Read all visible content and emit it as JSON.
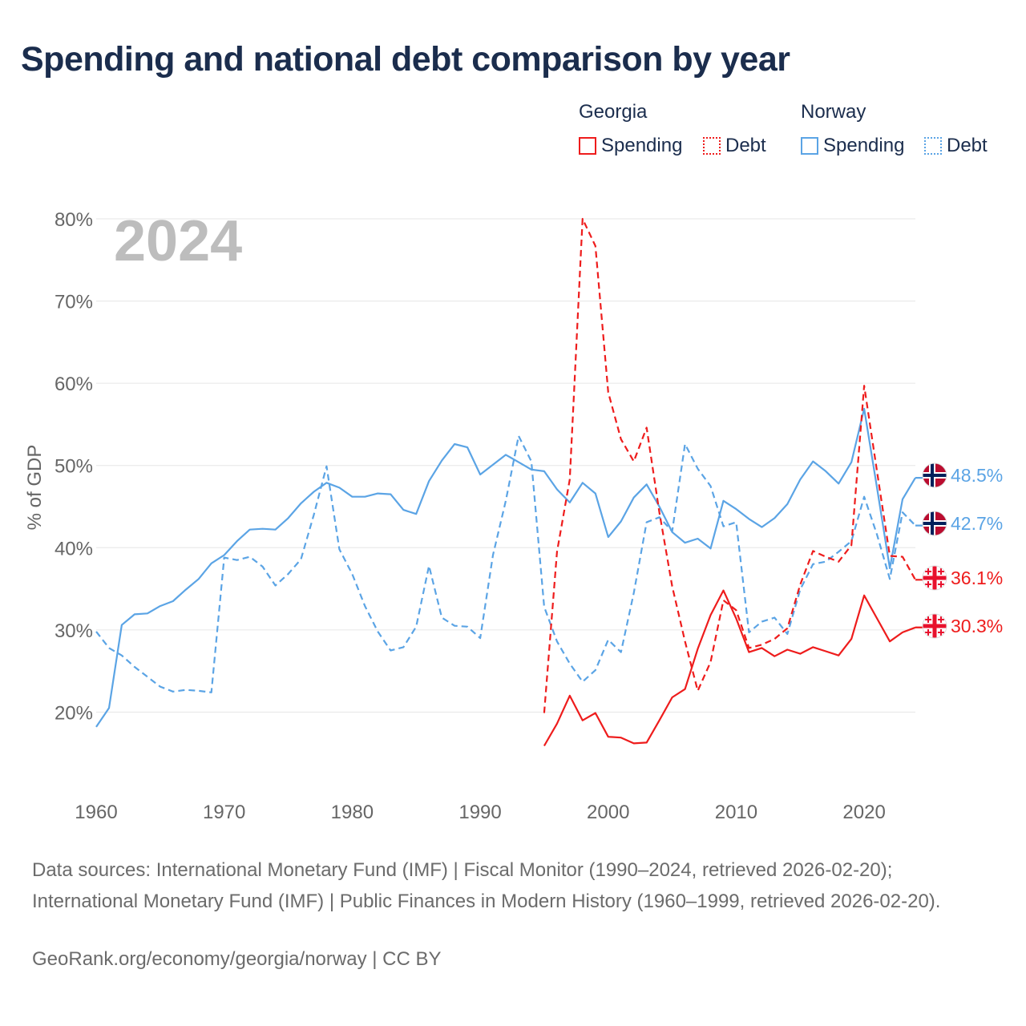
{
  "title": "Spending and national debt comparison by year",
  "legend": {
    "georgia": {
      "name": "Georgia",
      "spending": "Spending",
      "debt": "Debt"
    },
    "norway": {
      "name": "Norway",
      "spending": "Spending",
      "debt": "Debt"
    }
  },
  "colors": {
    "georgia": "#ee1c1c",
    "norway": "#5ba4e5",
    "grid": "#e6e6e6",
    "axis_text": "#666666",
    "year_text": "#bdbdbd"
  },
  "chart_data": {
    "type": "line",
    "title": "Spending and national debt comparison by year",
    "year_label": "2024",
    "ylabel": "% of GDP",
    "xlim": [
      1960,
      2024
    ],
    "ylim": [
      10,
      80
    ],
    "x_ticks": [
      1960,
      1970,
      1980,
      1990,
      2000,
      2010,
      2020
    ],
    "y_ticks": [
      20,
      30,
      40,
      50,
      60,
      70,
      80
    ],
    "y_tick_labels": [
      "20%",
      "30%",
      "40%",
      "50%",
      "60%",
      "70%",
      "80%"
    ],
    "series": [
      {
        "name": "Norway Spending",
        "country": "norway",
        "style": "solid",
        "start_year": 1960,
        "values": [
          18.2,
          20.5,
          30.6,
          31.9,
          32.0,
          32.9,
          33.5,
          34.9,
          36.2,
          38.1,
          39.1,
          40.8,
          42.2,
          42.3,
          42.2,
          43.6,
          45.4,
          46.8,
          47.9,
          47.3,
          46.2,
          46.2,
          46.6,
          46.5,
          44.6,
          44.1,
          48.1,
          50.6,
          52.6,
          52.2,
          48.9,
          50.1,
          51.3,
          50.4,
          49.5,
          49.3,
          47.1,
          45.5,
          47.9,
          46.6,
          41.3,
          43.2,
          46.1,
          47.7,
          45.0,
          41.9,
          40.6,
          41.1,
          39.9,
          45.7,
          44.7,
          43.5,
          42.5,
          43.6,
          45.3,
          48.3,
          50.5,
          49.3,
          47.8,
          50.4,
          56.9,
          47.3,
          37.5,
          45.9,
          48.5
        ],
        "end_label": "48.5%"
      },
      {
        "name": "Norway Debt",
        "country": "norway",
        "style": "dashed",
        "start_year": 1960,
        "values": [
          29.8,
          27.8,
          26.9,
          25.5,
          24.3,
          23.1,
          22.5,
          22.7,
          22.6,
          22.4,
          38.8,
          38.5,
          38.9,
          37.7,
          35.4,
          36.8,
          38.6,
          44.0,
          49.9,
          39.8,
          36.8,
          32.9,
          29.8,
          27.5,
          27.9,
          30.4,
          37.8,
          31.5,
          30.5,
          30.4,
          29.0,
          39.1,
          45.7,
          53.6,
          50.5,
          32.8,
          28.6,
          25.9,
          23.7,
          25.1,
          28.8,
          27.3,
          34.5,
          43.1,
          43.7,
          42.0,
          52.6,
          49.6,
          47.5,
          42.6,
          43.1,
          29.7,
          31.0,
          31.5,
          29.5,
          34.9,
          38.0,
          38.3,
          39.5,
          40.8,
          46.2,
          41.6,
          36.2,
          44.3,
          42.7
        ],
        "end_label": "42.7%"
      },
      {
        "name": "Georgia Spending",
        "country": "georgia",
        "style": "solid",
        "start_year": 1995,
        "values": [
          15.9,
          18.6,
          22.0,
          19.0,
          19.9,
          17.0,
          16.9,
          16.2,
          16.3,
          19.0,
          21.8,
          22.8,
          27.7,
          31.8,
          34.8,
          31.4,
          27.3,
          27.8,
          26.8,
          27.6,
          27.1,
          27.9,
          27.4,
          26.9,
          28.9,
          34.2,
          31.4,
          28.6,
          29.7,
          30.3
        ],
        "end_label": "30.3%"
      },
      {
        "name": "Georgia Debt",
        "country": "georgia",
        "style": "dashed",
        "start_year": 1995,
        "values": [
          19.9,
          39.5,
          48.3,
          80.0,
          76.7,
          58.9,
          53.2,
          50.5,
          54.6,
          44.3,
          35.3,
          28.6,
          22.6,
          26.1,
          33.6,
          32.4,
          27.8,
          28.2,
          28.9,
          30.2,
          35.5,
          39.6,
          38.9,
          38.3,
          40.3,
          59.7,
          49.3,
          39.0,
          38.9,
          36.1
        ],
        "end_label": "36.1%"
      }
    ]
  },
  "source": {
    "text": "Data sources: International Monetary Fund (IMF) | Fiscal Monitor (1990–2024, retrieved 2026-02-20); International Monetary Fund (IMF) | Public Finances in Modern History (1960–1999, retrieved 2026-02-20).",
    "footer": "GeoRank.org/economy/georgia/norway | CC BY"
  }
}
